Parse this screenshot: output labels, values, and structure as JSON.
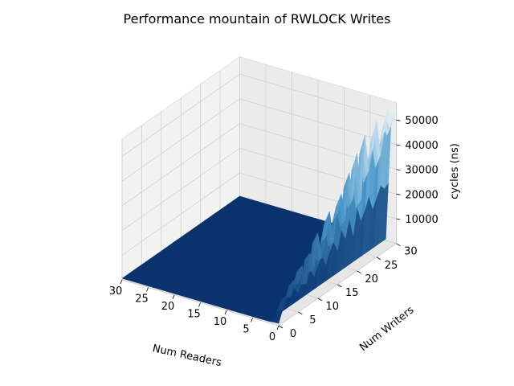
{
  "chart_data": {
    "type": "surface3d",
    "title": "Performance mountain of RWLOCK Writes",
    "xlabel": "Num Readers",
    "ylabel": "Num Writers",
    "zlabel": "cycles (ns)",
    "x_ticks": [
      30,
      25,
      20,
      15,
      10,
      5,
      0
    ],
    "y_ticks": [
      0,
      5,
      10,
      15,
      20,
      25,
      30
    ],
    "z_ticks": [
      10000,
      20000,
      30000,
      40000,
      50000
    ],
    "x_range": [
      0,
      30
    ],
    "y_range": [
      0,
      30
    ],
    "z_range": [
      0,
      57000
    ],
    "colormap": "Blues_r",
    "surface_colors": {
      "low": "#08306b",
      "mid": "#4a98c9",
      "high": "#f7fbff"
    },
    "grid": true,
    "readers_spike_threshold": 2,
    "series": [
      {
        "readers_range": [
          0,
          1
        ],
        "writers_values": [
          0,
          1,
          2,
          3,
          4,
          5,
          6,
          7,
          8,
          9,
          10,
          11,
          12,
          13,
          14,
          15,
          16,
          17,
          18,
          19,
          20,
          21,
          22,
          23,
          24,
          25,
          26,
          27,
          28,
          29,
          30
        ],
        "cycles_readers_0": [
          900,
          5200,
          9800,
          8600,
          14200,
          11500,
          17800,
          9400,
          20600,
          12800,
          26500,
          15200,
          22400,
          31800,
          18600,
          28800,
          35600,
          24200,
          41800,
          30400,
          47600,
          27800,
          52800,
          37600,
          44800,
          55200,
          40400,
          48600,
          56800,
          51600,
          54200
        ],
        "cycles_readers_1": [
          800,
          4100,
          7600,
          6900,
          11200,
          9800,
          14600,
          8100,
          17200,
          10900,
          21800,
          13100,
          19200,
          26400,
          15900,
          24100,
          29800,
          20600,
          35400,
          25900,
          40100,
          23600,
          44600,
          31800,
          38200,
          47100,
          34400,
          41600,
          48900,
          44200,
          46800
        ]
      }
    ],
    "flat_region_cycles": 600
  }
}
